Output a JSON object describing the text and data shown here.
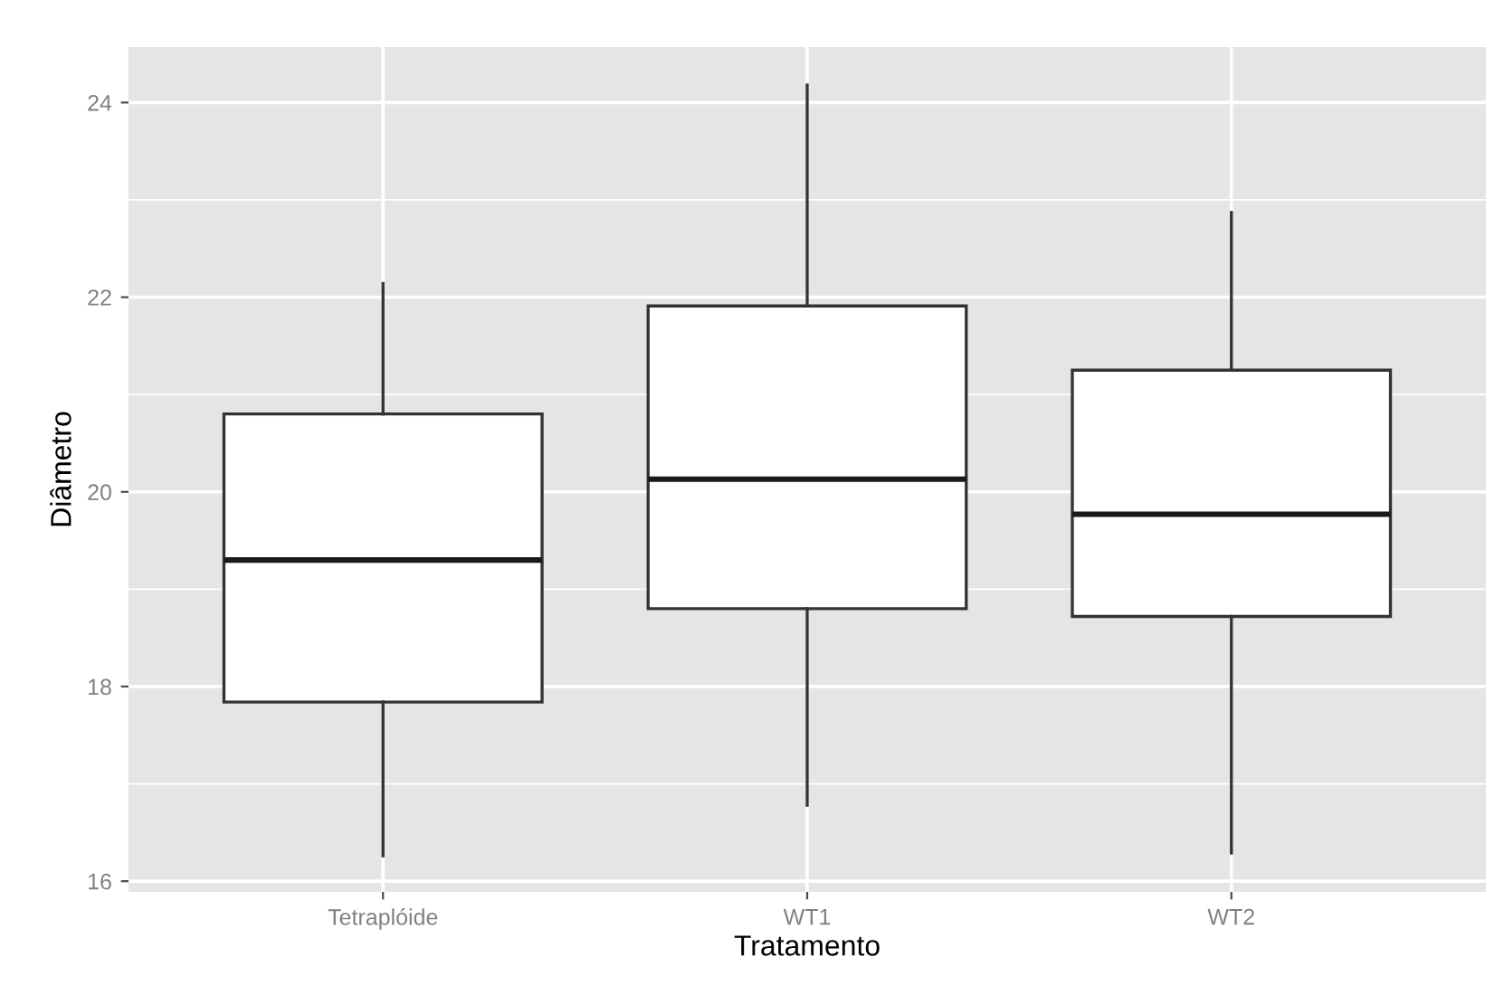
{
  "chart_data": {
    "type": "box",
    "xlabel": "Tratamento",
    "ylabel": "Diâmetro",
    "categories": [
      "Tetraplóide",
      "WT1",
      "WT2"
    ],
    "boxes": [
      {
        "low": 16.26,
        "q1": 17.84,
        "median": 19.3,
        "q3": 20.8,
        "high": 22.14
      },
      {
        "low": 16.78,
        "q1": 18.8,
        "median": 20.13,
        "q3": 21.91,
        "high": 24.18
      },
      {
        "low": 16.29,
        "q1": 18.72,
        "median": 19.77,
        "q3": 21.25,
        "high": 22.87
      }
    ],
    "ylim": [
      15.89,
      24.57
    ],
    "yticks": [
      16,
      18,
      20,
      22,
      24
    ],
    "grid": true
  }
}
